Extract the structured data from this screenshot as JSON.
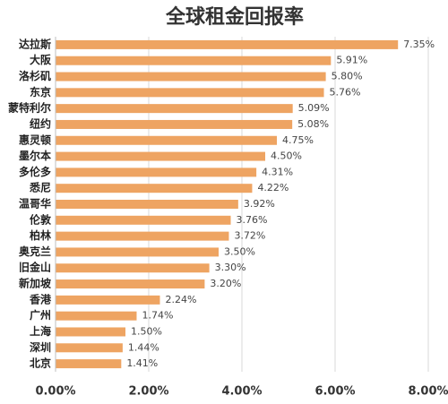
{
  "chart_data": {
    "type": "bar",
    "orientation": "horizontal",
    "title": "全球租金回报率",
    "categories": [
      "达拉斯",
      "大阪",
      "洛杉矶",
      "东京",
      "蒙特利尔",
      "纽约",
      "惠灵顿",
      "墨尔本",
      "多伦多",
      "悉尼",
      "温哥华",
      "伦敦",
      "柏林",
      "奥克兰",
      "旧金山",
      "新加坡",
      "香港",
      "广州",
      "上海",
      "深圳",
      "北京"
    ],
    "values": [
      7.35,
      5.91,
      5.8,
      5.76,
      5.09,
      5.08,
      4.75,
      4.5,
      4.31,
      4.22,
      3.92,
      3.76,
      3.72,
      3.5,
      3.3,
      3.2,
      2.24,
      1.74,
      1.5,
      1.44,
      1.41
    ],
    "value_labels": [
      "7.35%",
      "5.91%",
      "5.80%",
      "5.76%",
      "5.09%",
      "5.08%",
      "4.75%",
      "4.50%",
      "4.31%",
      "4.22%",
      "3.92%",
      "3.76%",
      "3.72%",
      "3.50%",
      "3.30%",
      "3.20%",
      "2.24%",
      "1.74%",
      "1.50%",
      "1.44%",
      "1.41%"
    ],
    "color": "#eea462",
    "xlim": [
      0,
      8
    ],
    "xticks": [
      {
        "value": 0,
        "label": "0.00%"
      },
      {
        "value": 2,
        "label": "2.00%"
      },
      {
        "value": 4,
        "label": "4.00%"
      },
      {
        "value": 6,
        "label": "6.00%"
      },
      {
        "value": 8,
        "label": "8.00%"
      }
    ],
    "grid": true
  }
}
